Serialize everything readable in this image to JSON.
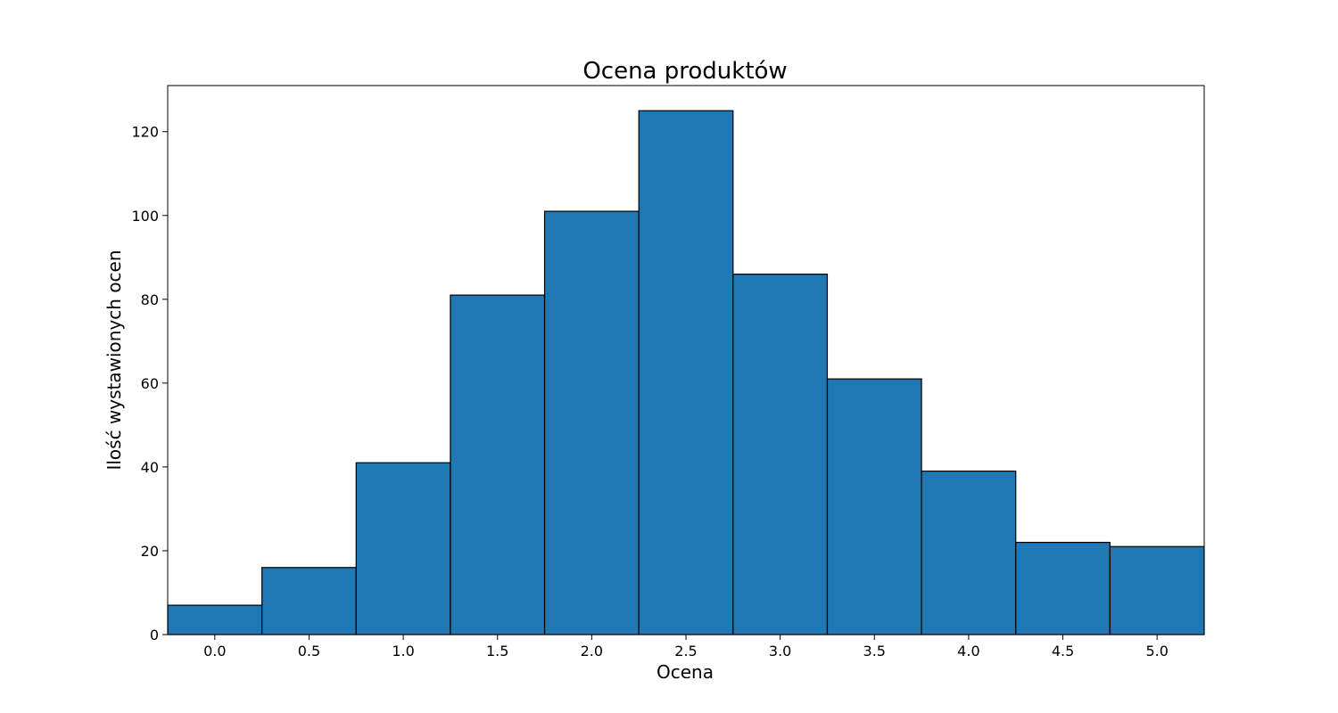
{
  "chart_data": {
    "type": "bar",
    "title": "Ocena produktów",
    "xlabel": "Ocena",
    "ylabel": "Ilość wystawionych ocen",
    "bin_width": 0.5,
    "x": [
      0.0,
      0.5,
      1.0,
      1.5,
      2.0,
      2.5,
      3.0,
      3.5,
      4.0,
      4.5,
      5.0
    ],
    "values": [
      7,
      16,
      41,
      81,
      101,
      125,
      86,
      61,
      39,
      22,
      21
    ],
    "xlim": [
      -0.25,
      5.25
    ],
    "ylim": [
      0,
      131
    ],
    "x_ticks": [
      "0.0",
      "0.5",
      "1.0",
      "1.5",
      "2.0",
      "2.5",
      "3.0",
      "3.5",
      "4.0",
      "4.5",
      "5.0"
    ],
    "y_ticks": [
      0,
      20,
      40,
      60,
      80,
      100,
      120
    ],
    "bar_color": "#1f77b4",
    "edge_color": "#000000",
    "grid": false,
    "legend": "none"
  }
}
